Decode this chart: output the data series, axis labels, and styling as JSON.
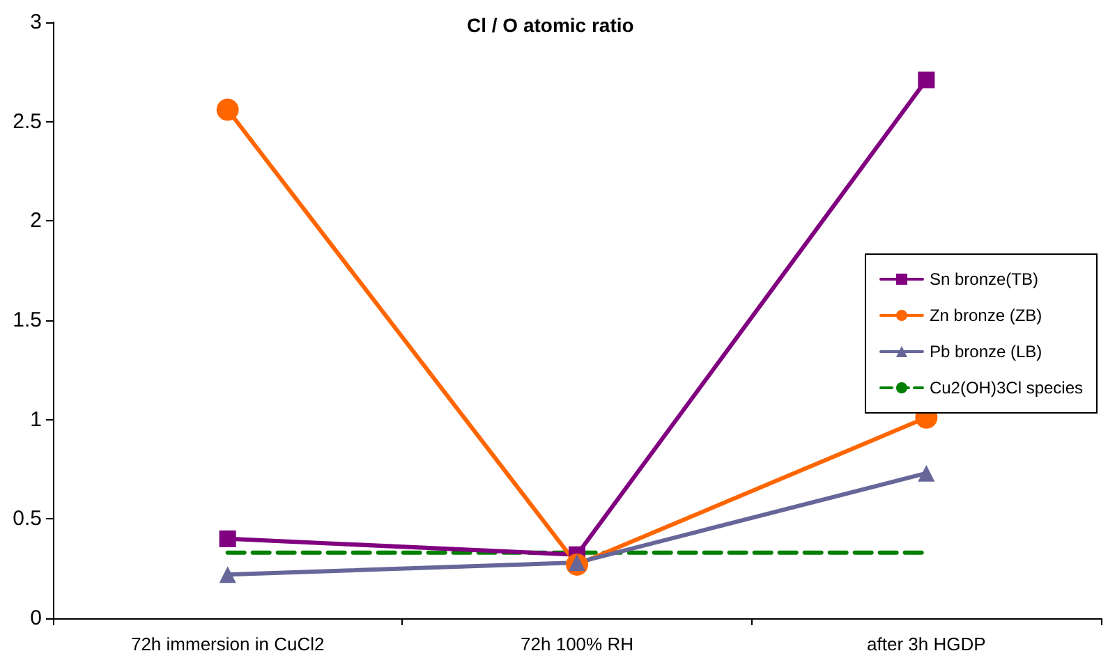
{
  "chart_data": {
    "type": "line",
    "title": "Cl / O atomic ratio",
    "categories": [
      "72h immersion in CuCl2",
      "72h 100% RH",
      "after 3h HGDP"
    ],
    "ylim": [
      0,
      3
    ],
    "yticks": [
      0,
      0.5,
      1,
      1.5,
      2,
      2.5,
      3
    ],
    "grid": false,
    "legend": "right",
    "series": [
      {
        "name": "Sn bronze(TB)",
        "color": "#800080",
        "values": [
          0.4,
          0.32,
          2.71
        ],
        "marker": "square",
        "line_style": "solid"
      },
      {
        "name": "Zn bronze (ZB)",
        "color": "#ff6600",
        "values": [
          2.56,
          0.27,
          1.01
        ],
        "marker": "circle",
        "line_style": "solid"
      },
      {
        "name": "Pb bronze (LB)",
        "color": "#666699",
        "values": [
          0.22,
          0.28,
          0.73
        ],
        "marker": "triangle",
        "line_style": "solid"
      },
      {
        "name": "Cu2(OH)3Cl species",
        "color": "#008000",
        "values": [
          0.33,
          0.33,
          0.33
        ],
        "marker": "none",
        "line_style": "dashed"
      }
    ]
  }
}
